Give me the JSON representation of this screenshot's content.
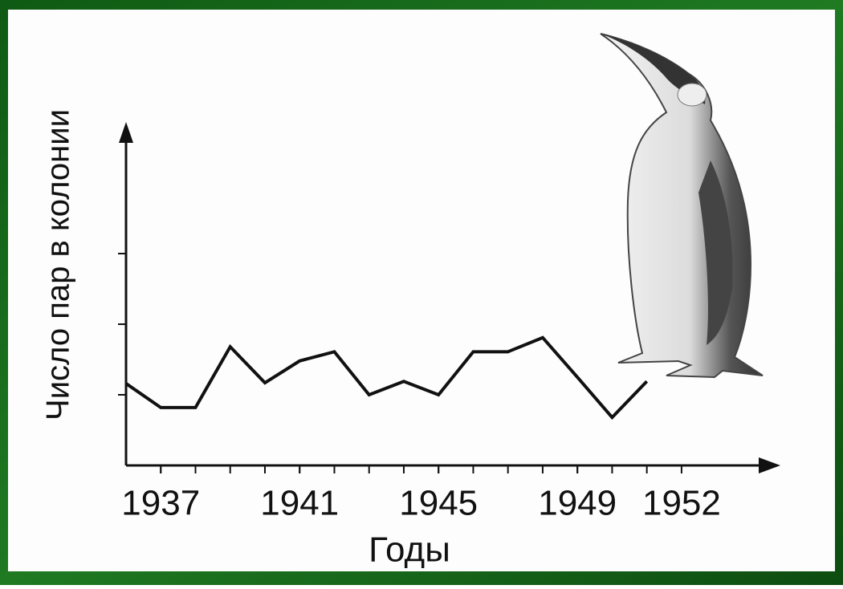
{
  "chart_data": {
    "type": "line",
    "y_label": "Число пар в колонии",
    "x_label": "Годы",
    "x": [
      1936,
      1937,
      1938,
      1939,
      1940,
      1941,
      1942,
      1943,
      1944,
      1945,
      1946,
      1947,
      1948,
      1949,
      1950,
      1951
    ],
    "values": [
      1.16,
      0.82,
      0.82,
      1.68,
      1.17,
      1.48,
      1.61,
      1.0,
      1.19,
      1.0,
      1.61,
      1.61,
      1.81,
      1.25,
      0.68,
      1.19
    ],
    "color": "#111111",
    "xlim": [
      1936,
      1954.8
    ],
    "xticks": [
      1937,
      1941,
      1945,
      1949,
      1952
    ],
    "ylim": [
      0,
      4.83
    ],
    "yticks": [
      1,
      2,
      3
    ]
  }
}
